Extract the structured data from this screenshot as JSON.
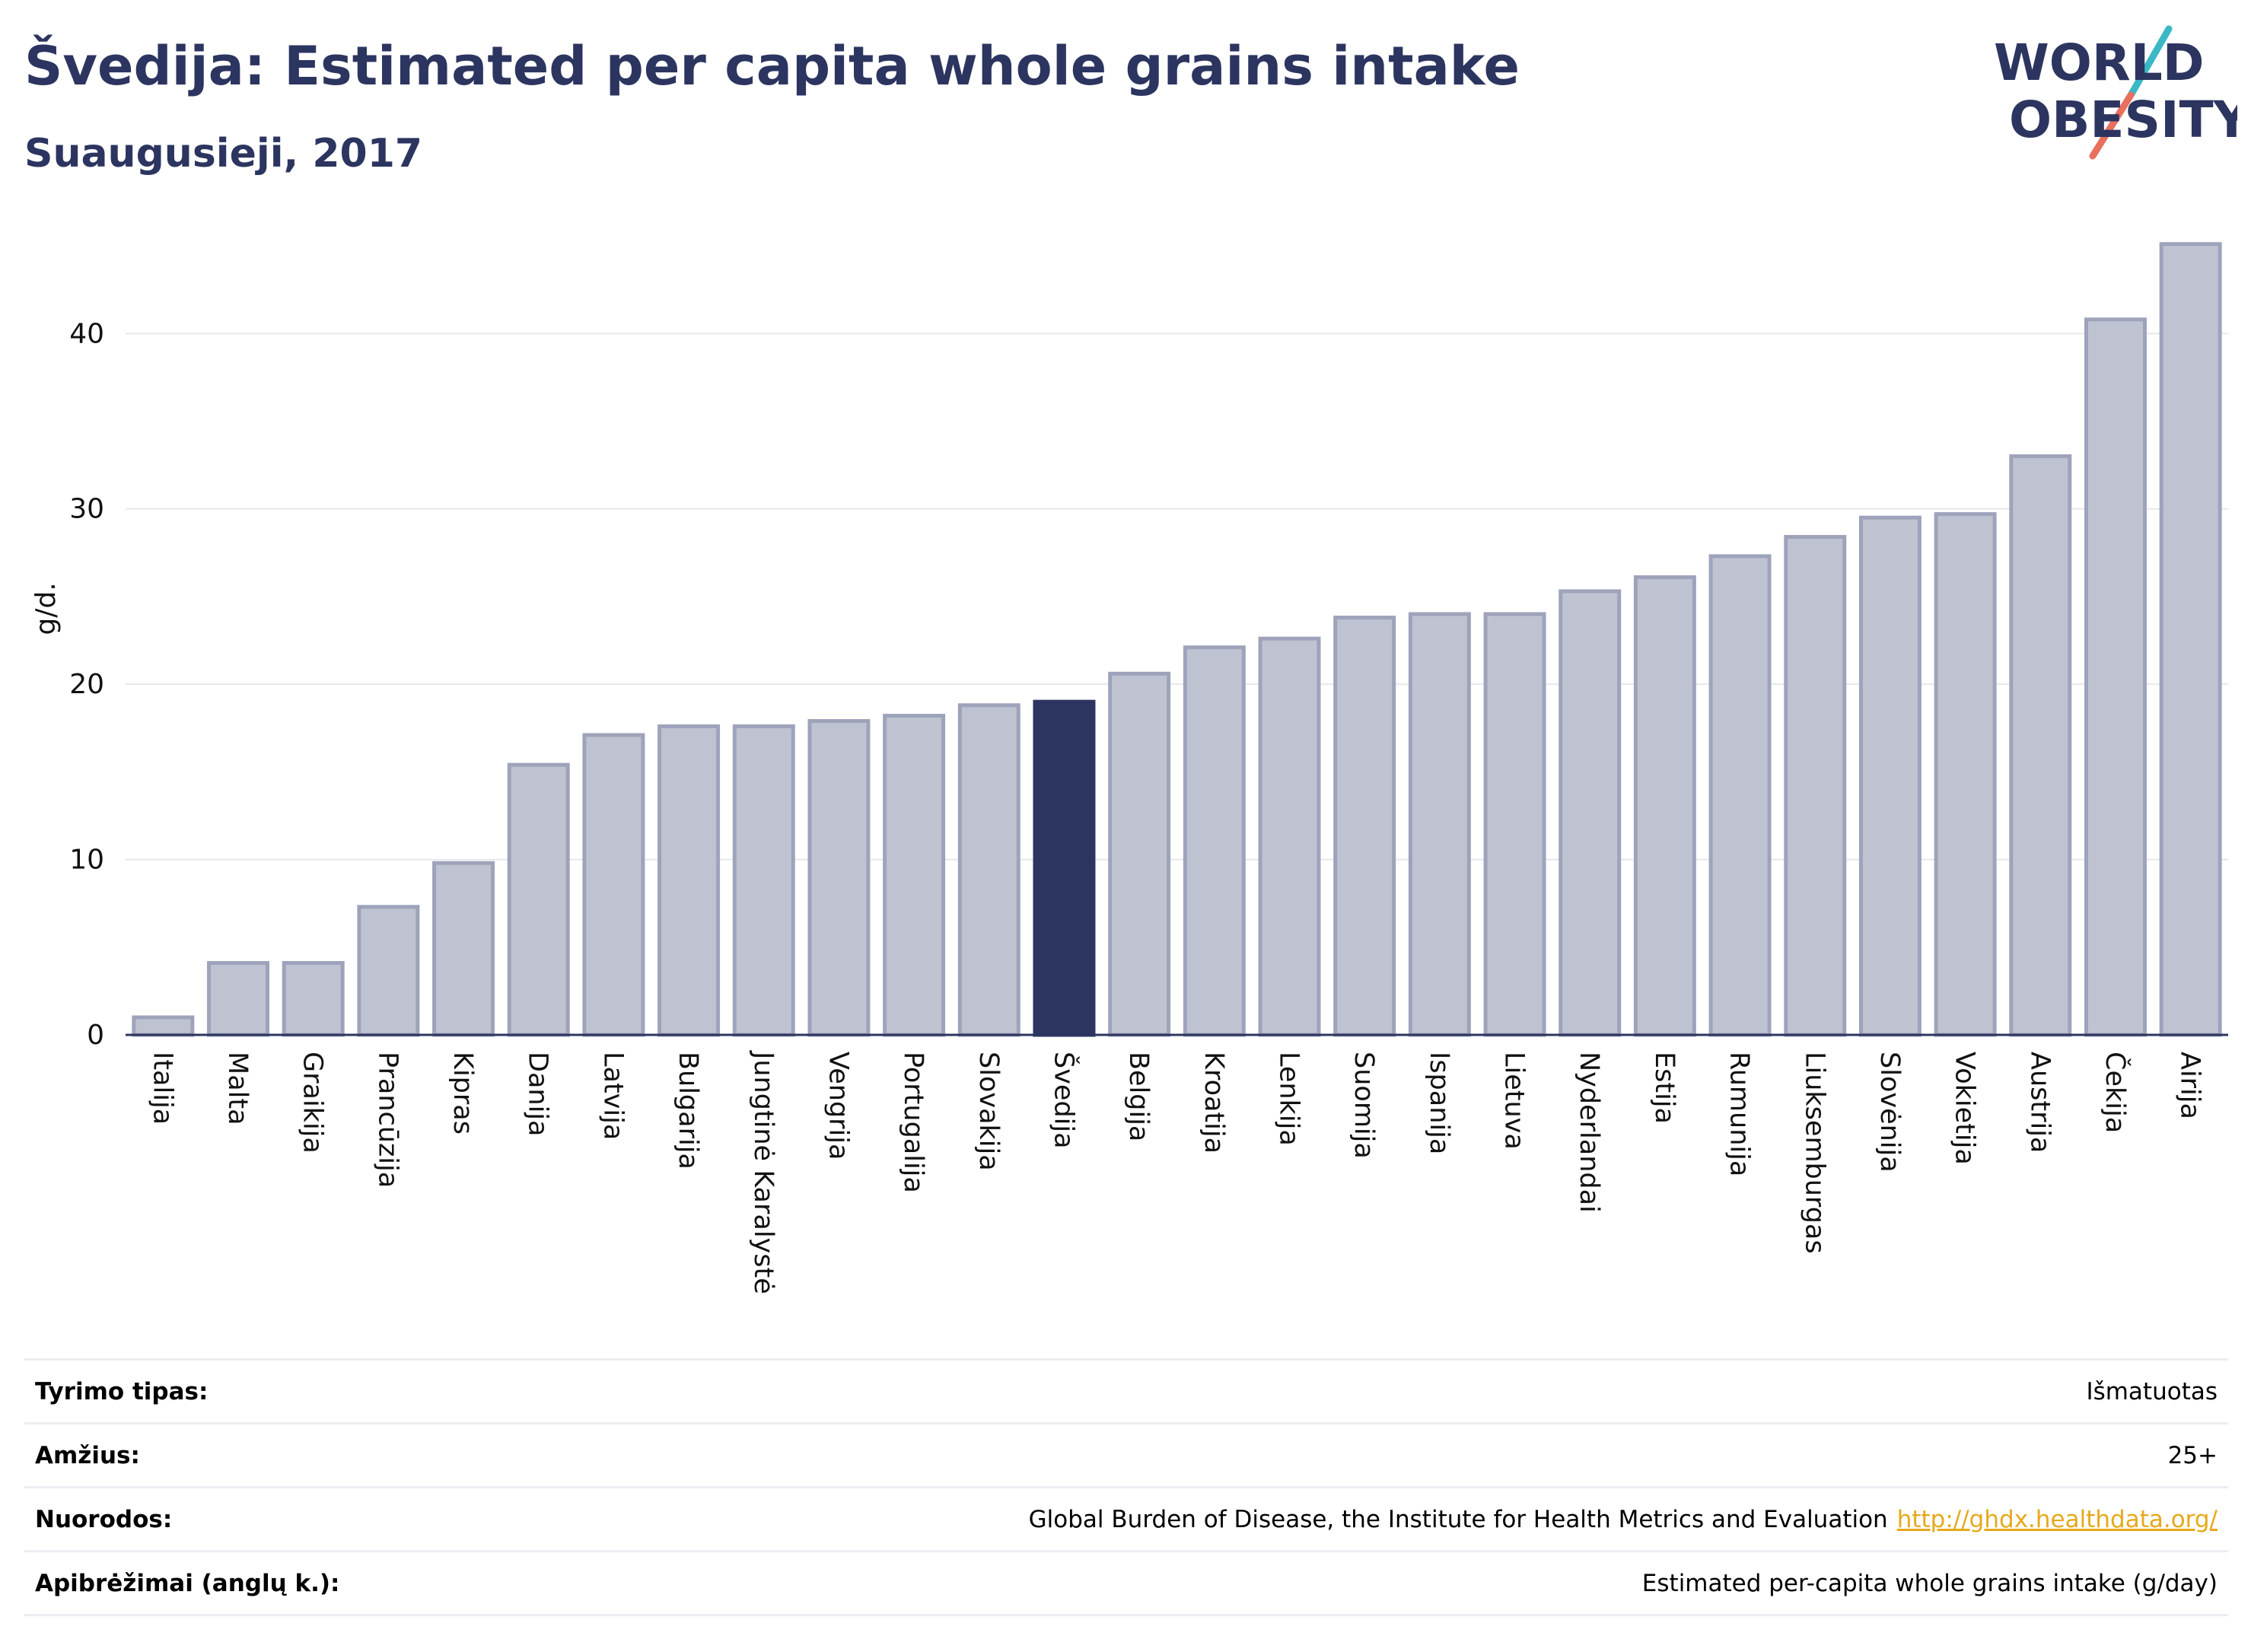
{
  "header": {
    "title": "Švedija: Estimated per capita whole grains intake",
    "subtitle": "Suaugusieji, 2017"
  },
  "logo": {
    "line1": "WORLD",
    "line2": "OBESITY",
    "colors": {
      "text": "#2c3560",
      "teal": "#3ab8c5",
      "coral": "#e8705e"
    }
  },
  "chart_data": {
    "type": "bar",
    "ylabel": "g/d.",
    "ylim": [
      0,
      46
    ],
    "yticks": [
      0,
      10,
      20,
      30,
      40
    ],
    "grid": true,
    "highlight": "Švedija",
    "colors": {
      "bar": "#bfc3d1",
      "bar_border": "#9ea3bb",
      "highlight": "#2c3560"
    },
    "categories": [
      "Italija",
      "Malta",
      "Graikija",
      "Prancūzija",
      "Kipras",
      "Danija",
      "Latvija",
      "Bulgarija",
      "Jungtinė Karalystė",
      "Vengrija",
      "Portugalija",
      "Slovakija",
      "Švedija",
      "Belgija",
      "Kroatija",
      "Lenkija",
      "Suomija",
      "Ispanija",
      "Lietuva",
      "Nyderlandai",
      "Estija",
      "Rumunija",
      "Liuksemburgas",
      "Slovėnija",
      "Vokietija",
      "Austrija",
      "Čekija",
      "Airija"
    ],
    "values": [
      1.0,
      4.1,
      4.1,
      7.3,
      9.8,
      15.4,
      17.1,
      17.6,
      17.6,
      17.9,
      18.2,
      18.8,
      19.0,
      20.6,
      22.1,
      22.6,
      23.8,
      24.0,
      24.0,
      25.3,
      26.1,
      27.3,
      28.4,
      29.5,
      29.7,
      33.0,
      40.8,
      45.1
    ]
  },
  "info": {
    "rows": [
      {
        "key": "Tyrimo tipas:",
        "value": "Išmatuotas"
      },
      {
        "key": "Amžius:",
        "value": "25+"
      },
      {
        "key": "Nuorodos:",
        "value": "Global Burden of Disease, the Institute for Health Metrics and Evaluation",
        "link": "http://ghdx.healthdata.org/"
      },
      {
        "key": "Apibrėžimai (anglų k.):",
        "value": "Estimated per-capita whole grains intake (g/day)"
      }
    ]
  }
}
